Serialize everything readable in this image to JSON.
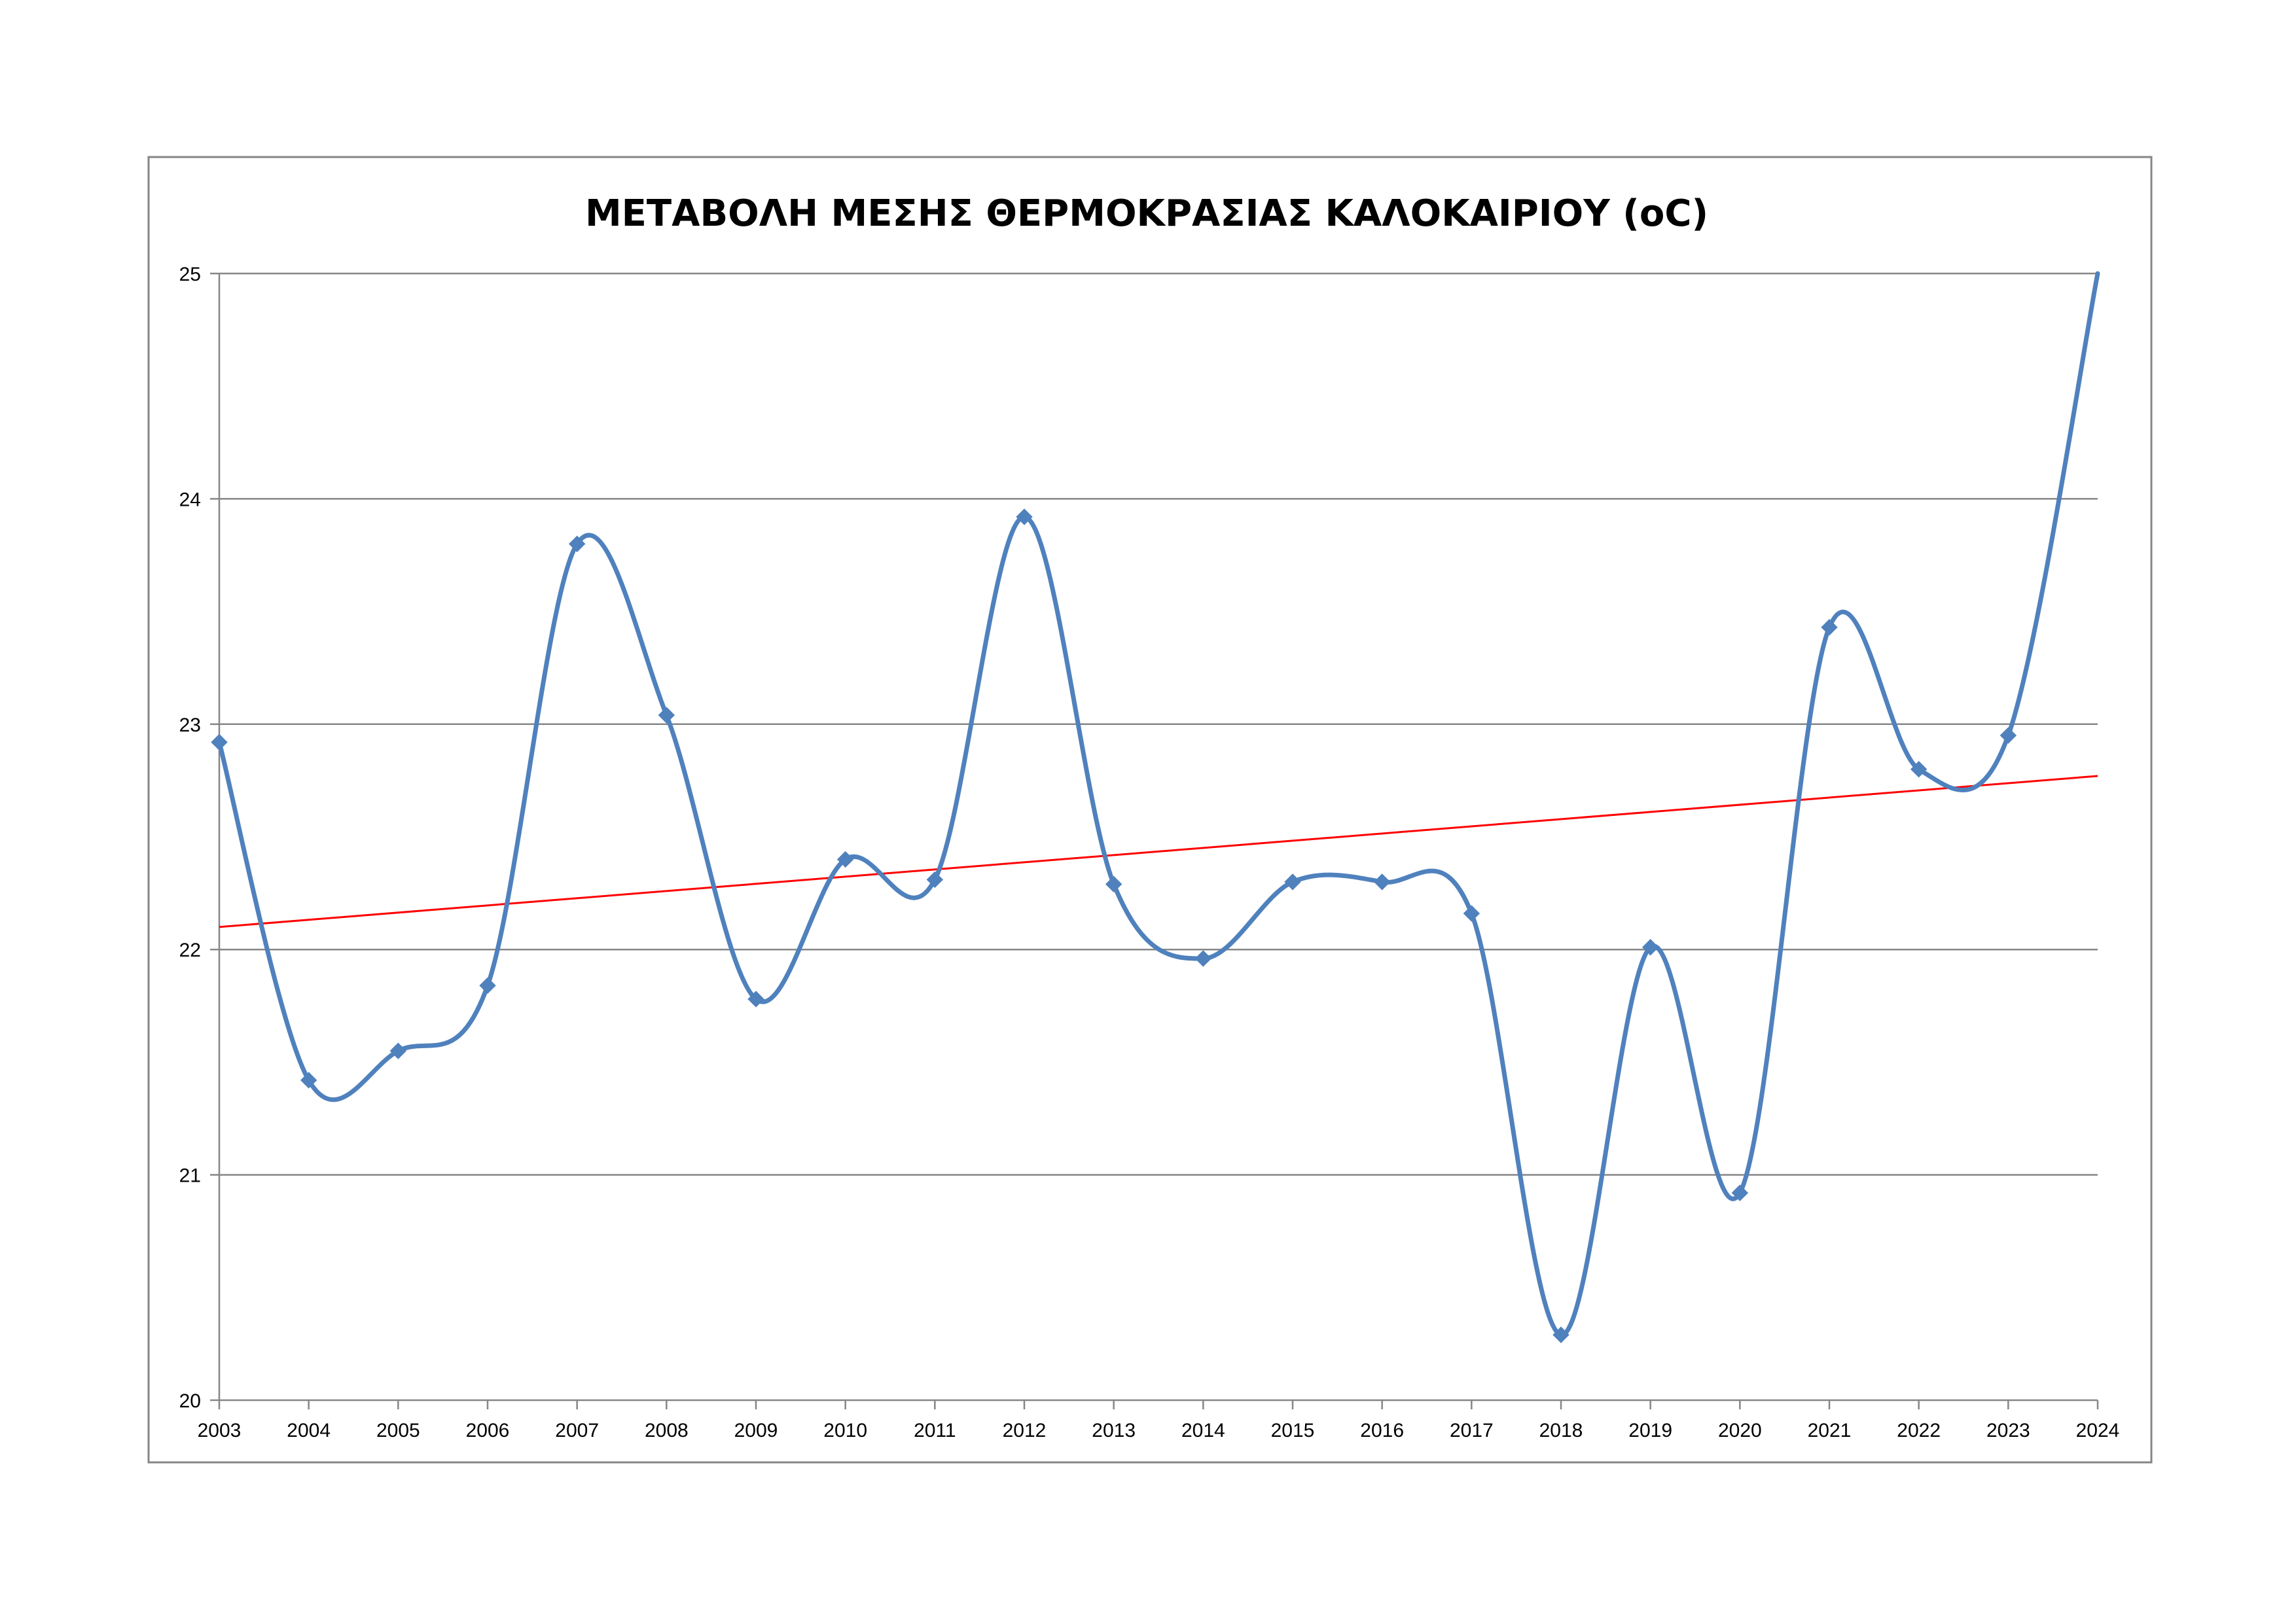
{
  "chart_data": {
    "type": "line",
    "title": "ΜΕΤΑΒΟΛΗ ΜΕΣΗΣ ΘΕΡΜΟΚΡΑΣΙΑΣ ΚΑΛΟΚΑΙΡΙΟΥ (oC)",
    "xlabel": "",
    "ylabel": "",
    "x": [
      2003,
      2004,
      2005,
      2006,
      2007,
      2008,
      2009,
      2010,
      2011,
      2012,
      2013,
      2014,
      2015,
      2016,
      2017,
      2018,
      2019,
      2020,
      2021,
      2022,
      2023,
      2024
    ],
    "x_tick_labels": [
      "2003",
      "2004",
      "2005",
      "2006",
      "2007",
      "2008",
      "2009",
      "2010",
      "2011",
      "2012",
      "2013",
      "2014",
      "2015",
      "2016",
      "2017",
      "2018",
      "2019",
      "2020",
      "2021",
      "2022",
      "2023",
      "2024"
    ],
    "y_ticks": [
      20,
      21,
      22,
      23,
      24,
      25
    ],
    "y_tick_labels": [
      "20",
      "21",
      "22",
      "23",
      "24",
      "25"
    ],
    "ylim": [
      20,
      25
    ],
    "grid": "horizontal",
    "legend": "none",
    "series": [
      {
        "values": [
          22.92,
          21.42,
          21.55,
          21.84,
          23.8,
          23.04,
          21.78,
          22.4,
          22.31,
          23.92,
          22.29,
          21.96,
          22.3,
          22.3,
          22.16,
          20.29,
          22.01,
          20.92,
          23.43,
          22.8,
          22.95,
          25.0
        ],
        "color": "#4f81bd",
        "marker": "diamond",
        "smooth": true,
        "markers_on": "2003-2023"
      }
    ],
    "trendline": {
      "type": "linear",
      "start": 22.1,
      "end": 22.77,
      "color": "#ff0000"
    },
    "colors": {
      "gridline": "#868686",
      "axis": "#868686",
      "frame": "#868686"
    }
  }
}
